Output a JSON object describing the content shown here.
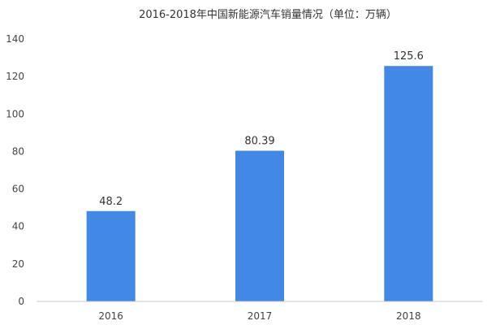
{
  "chart_data": {
    "type": "bar",
    "title": "2016-2018年中国新能源汽车销量情况（单位：万辆）",
    "categories": [
      "2016",
      "2017",
      "2018"
    ],
    "values": [
      48.2,
      80.39,
      125.6
    ],
    "value_labels": [
      "48.2",
      "80.39",
      "125.6"
    ],
    "ylim": [
      0,
      140
    ],
    "yticks": [
      0,
      20,
      40,
      60,
      80,
      100,
      120,
      140
    ],
    "grid": false,
    "legend": "none",
    "bar_color": "#4189e5",
    "axis_color": "#cccccc"
  }
}
